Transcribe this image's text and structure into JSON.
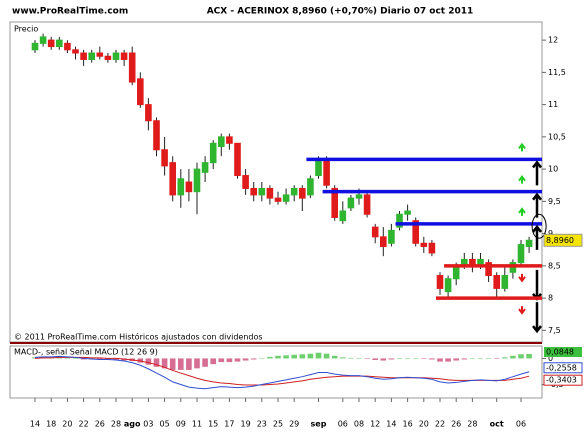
{
  "chart_data": [
    {
      "type": "candlestick",
      "source": "www.ProRealTime.com",
      "title": "ACX - ACERINOX  8,8960 (+0,70%)  Diario  07 oct 2011",
      "ylabel": "Precio",
      "footnote": "© 2011 ProRealTime.com Históricos ajustados con dividendos",
      "categories": [
        "14",
        null,
        "18",
        null,
        "20",
        null,
        "22",
        null,
        "26",
        null,
        "28",
        null,
        "ago",
        null,
        "03",
        null,
        "05",
        null,
        "09",
        null,
        "11",
        null,
        "15",
        null,
        "17",
        null,
        "19",
        null,
        "23",
        null,
        "25",
        null,
        "29",
        null,
        null,
        "sep",
        null,
        null,
        "06",
        null,
        "08",
        null,
        "12",
        null,
        "14",
        null,
        "16",
        null,
        "20",
        null,
        "22",
        null,
        "26",
        null,
        "28",
        null,
        null,
        "oct",
        null,
        null,
        "06",
        null
      ],
      "open": [
        11.85,
        11.95,
        12.0,
        11.9,
        11.95,
        11.85,
        11.8,
        11.7,
        11.8,
        11.75,
        11.7,
        11.8,
        11.8,
        11.4,
        11.0,
        10.75,
        10.3,
        10.1,
        9.6,
        9.8,
        9.65,
        9.95,
        10.1,
        10.35,
        10.5,
        10.4,
        9.9,
        9.7,
        9.6,
        9.7,
        9.55,
        9.5,
        9.6,
        9.7,
        9.6,
        9.9,
        10.15,
        9.7,
        9.2,
        9.4,
        9.55,
        9.6,
        9.1,
        8.95,
        8.85,
        9.1,
        9.3,
        9.2,
        8.85,
        8.85,
        8.35,
        8.1,
        8.3,
        8.5,
        8.6,
        8.5,
        8.55,
        8.35,
        8.15,
        8.4,
        8.55,
        8.8
      ],
      "high": [
        12.0,
        12.1,
        12.05,
        12.05,
        12.0,
        11.9,
        11.85,
        11.85,
        11.9,
        11.8,
        11.85,
        11.85,
        11.9,
        11.5,
        11.1,
        10.8,
        10.5,
        10.2,
        10.0,
        10.0,
        10.1,
        10.2,
        10.45,
        10.55,
        10.55,
        10.4,
        10.0,
        9.8,
        9.8,
        9.75,
        9.65,
        9.7,
        9.75,
        9.75,
        9.9,
        10.2,
        10.2,
        9.75,
        9.5,
        9.6,
        9.7,
        9.65,
        9.15,
        9.1,
        9.15,
        9.35,
        9.45,
        9.25,
        8.95,
        8.9,
        8.4,
        8.35,
        8.55,
        8.7,
        8.7,
        8.7,
        8.6,
        8.4,
        8.5,
        8.6,
        8.9,
        8.95
      ],
      "low": [
        11.8,
        11.9,
        11.85,
        11.85,
        11.8,
        11.7,
        11.6,
        11.65,
        11.7,
        11.65,
        11.65,
        11.6,
        11.3,
        10.95,
        10.6,
        10.2,
        9.9,
        9.5,
        9.4,
        9.5,
        9.3,
        9.8,
        10.0,
        10.2,
        10.3,
        9.85,
        9.6,
        9.5,
        9.5,
        9.45,
        9.45,
        9.45,
        9.5,
        9.35,
        9.55,
        9.85,
        9.7,
        9.2,
        9.15,
        9.35,
        9.45,
        9.25,
        8.85,
        8.65,
        8.8,
        9.05,
        9.2,
        8.8,
        8.7,
        8.65,
        8.05,
        8.0,
        8.2,
        8.45,
        8.4,
        8.45,
        8.25,
        8.0,
        8.1,
        8.3,
        8.5,
        8.7
      ],
      "close": [
        11.95,
        12.05,
        11.9,
        12.0,
        11.85,
        11.8,
        11.7,
        11.8,
        11.75,
        11.7,
        11.8,
        11.7,
        11.35,
        11.0,
        10.75,
        10.3,
        10.05,
        9.6,
        9.85,
        9.65,
        10.0,
        10.1,
        10.4,
        10.5,
        10.4,
        9.9,
        9.7,
        9.6,
        9.7,
        9.55,
        9.5,
        9.6,
        9.7,
        9.55,
        9.85,
        10.15,
        9.75,
        9.25,
        9.35,
        9.55,
        9.6,
        9.3,
        8.95,
        8.8,
        9.05,
        9.3,
        9.35,
        8.85,
        8.8,
        8.7,
        8.15,
        8.3,
        8.5,
        8.6,
        8.5,
        8.6,
        8.35,
        8.15,
        8.35,
        8.55,
        8.83,
        8.896
      ],
      "up_color": "#2fb52f",
      "down_color": "#e01b1b",
      "ylim": [
        7.35,
        12.25
      ],
      "yticks": [
        12,
        {
          "value": 11.5,
          "label": "11,5"
        },
        11,
        {
          "value": 10.5,
          "label": "10,5"
        },
        10,
        {
          "value": 9.5,
          "label": "9,5"
        },
        9,
        {
          "value": 8.5,
          "label": "8,5"
        },
        8,
        {
          "value": 7.5,
          "label": "7,5"
        }
      ],
      "price_label": "8,8960",
      "levels": [
        {
          "value": 10.15,
          "color": "#1010e0"
        },
        {
          "value": 9.65,
          "color": "#1010e0"
        },
        {
          "value": 9.15,
          "color": "#1010e0"
        },
        {
          "value": 8.5,
          "color": "#e01b1b"
        },
        {
          "value": 8.0,
          "color": "#e01b1b"
        }
      ]
    },
    {
      "type": "macd",
      "title": "MACD-, señal Señal MACD (12 26 9)",
      "histogram": {
        "color": "#c83c6e",
        "up_color": "#3cbf3c",
        "value_label": "0,0848",
        "values": [
          0.02,
          0.02,
          0.02,
          0.02,
          0.01,
          0,
          -0.02,
          -0.02,
          -0.03,
          -0.02,
          -0.03,
          -0.04,
          -0.05,
          -0.08,
          -0.12,
          -0.16,
          -0.19,
          -0.22,
          -0.22,
          -0.22,
          -0.19,
          -0.16,
          -0.11,
          -0.07,
          -0.07,
          -0.06,
          -0.04,
          -0.02,
          0.01,
          0.03,
          0.05,
          0.06,
          0.07,
          0.08,
          0.09,
          0.11,
          0.09,
          0.05,
          0.02,
          0.01,
          0.01,
          -0.01,
          -0.03,
          -0.04,
          -0.02,
          0,
          0.01,
          0,
          -0.01,
          -0.02,
          -0.06,
          -0.06,
          -0.04,
          -0.02,
          0,
          0.01,
          0,
          -0.01,
          0.02,
          0.05,
          0.08,
          0.0848
        ]
      },
      "macd": {
        "color": "#2f4fd0",
        "value_label": "-0,2558",
        "values": [
          0.02,
          0.03,
          0.03,
          0.04,
          0.03,
          0.02,
          0.0,
          -0.01,
          -0.02,
          -0.02,
          -0.03,
          -0.05,
          -0.08,
          -0.13,
          -0.2,
          -0.28,
          -0.36,
          -0.45,
          -0.5,
          -0.55,
          -0.57,
          -0.58,
          -0.56,
          -0.54,
          -0.55,
          -0.56,
          -0.55,
          -0.53,
          -0.5,
          -0.47,
          -0.44,
          -0.41,
          -0.38,
          -0.35,
          -0.31,
          -0.27,
          -0.27,
          -0.3,
          -0.32,
          -0.33,
          -0.33,
          -0.35,
          -0.38,
          -0.4,
          -0.39,
          -0.37,
          -0.36,
          -0.37,
          -0.38,
          -0.4,
          -0.45,
          -0.47,
          -0.46,
          -0.44,
          -0.42,
          -0.41,
          -0.42,
          -0.43,
          -0.4,
          -0.35,
          -0.3,
          -0.2558
        ]
      },
      "signal": {
        "color": "#d02020",
        "value_label": "-0,3403",
        "values": [
          0.0,
          0.01,
          0.01,
          0.02,
          0.02,
          0.02,
          0.02,
          0.01,
          0.01,
          0.0,
          0.0,
          -0.01,
          -0.03,
          -0.05,
          -0.08,
          -0.12,
          -0.17,
          -0.23,
          -0.28,
          -0.33,
          -0.38,
          -0.42,
          -0.45,
          -0.47,
          -0.48,
          -0.5,
          -0.51,
          -0.51,
          -0.51,
          -0.5,
          -0.49,
          -0.47,
          -0.45,
          -0.43,
          -0.4,
          -0.38,
          -0.36,
          -0.35,
          -0.34,
          -0.34,
          -0.34,
          -0.34,
          -0.35,
          -0.36,
          -0.37,
          -0.37,
          -0.37,
          -0.37,
          -0.37,
          -0.38,
          -0.39,
          -0.41,
          -0.42,
          -0.42,
          -0.42,
          -0.42,
          -0.42,
          -0.42,
          -0.42,
          -0.4,
          -0.38,
          -0.3403
        ]
      },
      "ylim": [
        -0.72,
        0.2
      ],
      "yticks": [
        0,
        {
          "value": -0.5,
          "label": "-0,5"
        }
      ]
    }
  ]
}
